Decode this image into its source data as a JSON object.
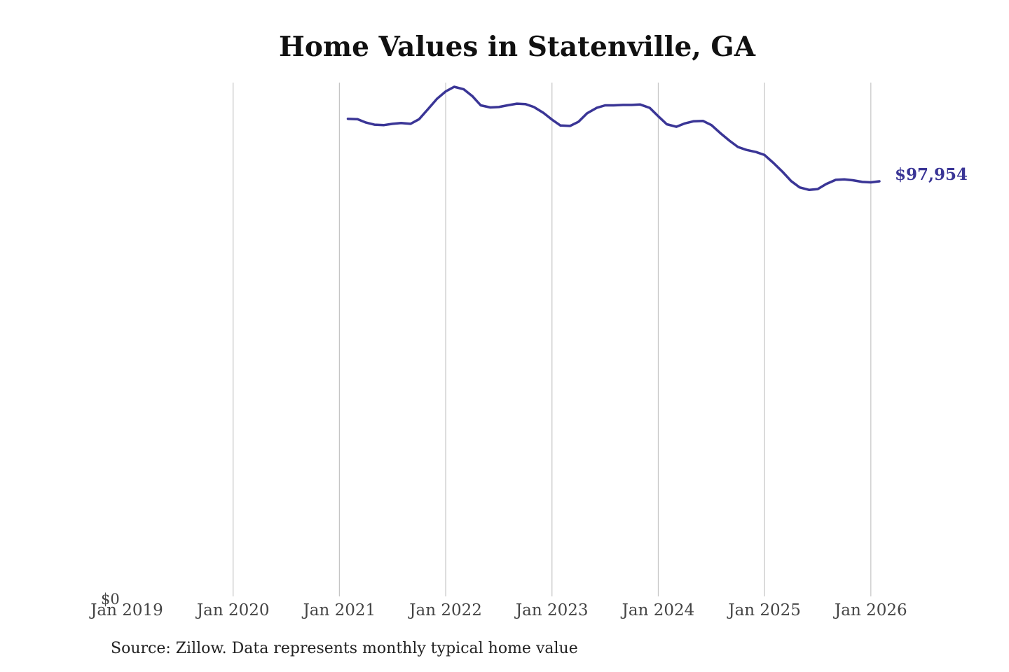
{
  "chart_data": {
    "type": "line",
    "title": "Home Values in Statenville, GA",
    "source": "Source: Zillow. Data represents monthly typical home value",
    "y_axis_label": "$0",
    "end_label": "$97,954",
    "x_ticks": [
      "Jan 2019",
      "Jan 2020",
      "Jan 2021",
      "Jan 2022",
      "Jan 2023",
      "Jan 2024",
      "Jan 2025",
      "Jan 2026"
    ],
    "x_tick_values": [
      2019,
      2020,
      2021,
      2022,
      2023,
      2024,
      2025,
      2026
    ],
    "xlim": [
      2019,
      2026.1
    ],
    "ylim": [
      0,
      121400
    ],
    "grid": "vertical",
    "line_color": "#3a3596",
    "series": [
      {
        "x": [
          2021.08,
          2021.17,
          2021.25,
          2021.33,
          2021.42,
          2021.5,
          2021.58,
          2021.67,
          2021.75,
          2021.83,
          2021.92,
          2022.0,
          2022.08,
          2022.17,
          2022.25,
          2022.33,
          2022.42,
          2022.5,
          2022.58,
          2022.67,
          2022.75,
          2022.83,
          2022.92,
          2023.0,
          2023.08,
          2023.17,
          2023.25,
          2023.33,
          2023.42,
          2023.5,
          2023.58,
          2023.67,
          2023.75,
          2023.83,
          2023.92,
          2024.0,
          2024.08,
          2024.17,
          2024.25,
          2024.33,
          2024.42,
          2024.5,
          2024.58,
          2024.67,
          2024.75,
          2024.83,
          2024.92,
          2025.0,
          2025.08,
          2025.17,
          2025.25,
          2025.33,
          2025.42,
          2025.5,
          2025.58,
          2025.67,
          2025.75,
          2025.83,
          2025.92,
          2026.0,
          2026.08
        ],
        "values": [
          112800,
          112700,
          111900,
          111400,
          111300,
          111600,
          111800,
          111600,
          112700,
          115000,
          117600,
          119300,
          120400,
          119800,
          118200,
          116000,
          115500,
          115600,
          116000,
          116400,
          116300,
          115600,
          114200,
          112600,
          111200,
          111100,
          112100,
          114100,
          115400,
          116000,
          116000,
          116100,
          116100,
          116200,
          115400,
          113400,
          111500,
          110900,
          111700,
          112200,
          112300,
          111300,
          109500,
          107600,
          106100,
          105400,
          104900,
          104200,
          102400,
          100200,
          98000,
          96500,
          95900,
          96100,
          97300,
          98300,
          98400,
          98200,
          97800,
          97700,
          97954
        ]
      }
    ]
  }
}
